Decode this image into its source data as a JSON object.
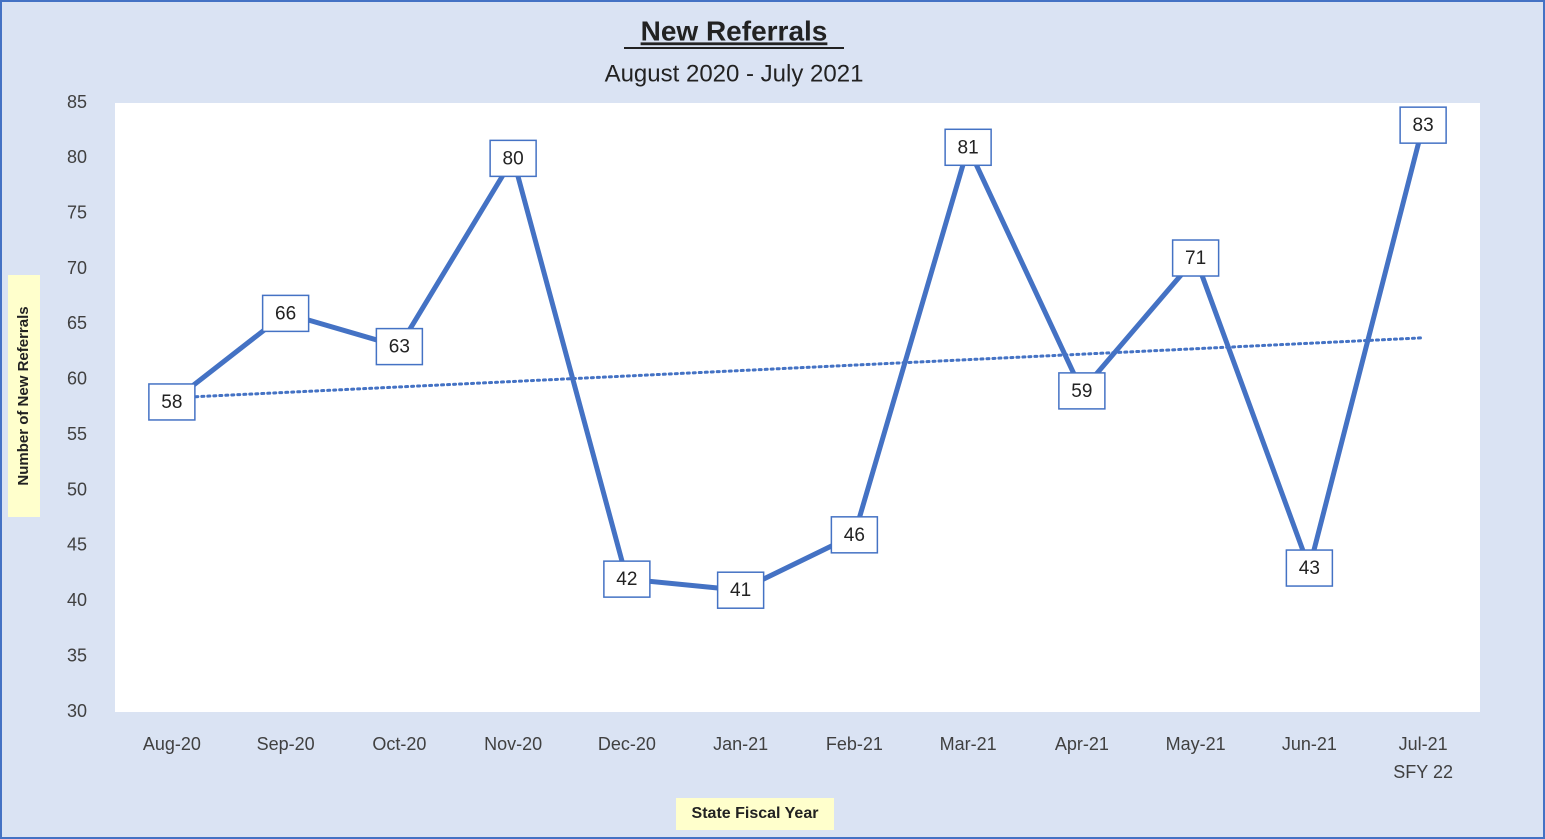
{
  "chart_data": {
    "type": "line",
    "title": "New Referrals",
    "subtitle": "August 2020 - July 2021",
    "x_label": "State Fiscal Year",
    "y_label": "Number of New Referrals",
    "categories": [
      "Aug-20",
      "Sep-20",
      "Oct-20",
      "Nov-20",
      "Dec-20",
      "Jan-21",
      "Feb-21",
      "Mar-21",
      "Apr-21",
      "May-21",
      "Jun-21",
      "Jul-21"
    ],
    "annotations": [
      {
        "text": "SFY 22",
        "category": 11
      }
    ],
    "series": [
      {
        "name": "New Referrals",
        "color": "#4472c4",
        "values": [
          58,
          66,
          63,
          80,
          42,
          41,
          46,
          81,
          59,
          71,
          43,
          83
        ]
      }
    ],
    "trendline": "linear",
    "ylim": [
      30,
      85
    ],
    "yticks": [
      30,
      35,
      40,
      45,
      50,
      55,
      60,
      65,
      70,
      75,
      80,
      85
    ],
    "grid": false
  }
}
